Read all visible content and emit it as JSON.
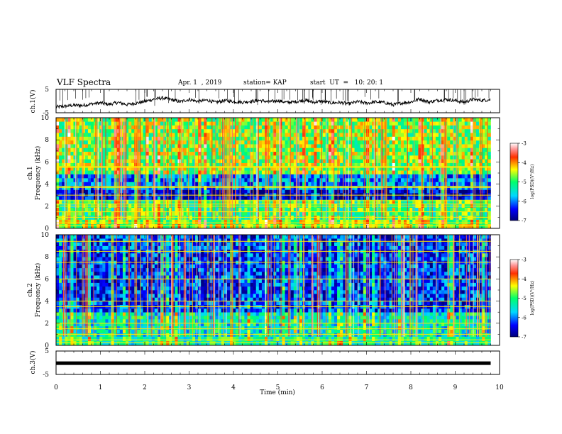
{
  "header": {
    "title": "VLF Spectra",
    "date": "Apr. 1  , 2019",
    "station": "station= KAP",
    "start": "start  UT  =   10: 20: 1"
  },
  "chart_data": [
    {
      "type": "line",
      "panel": "ch1-waveform",
      "ylabel": "ch.1(V)",
      "xlabel": "",
      "xlim": [
        0,
        10
      ],
      "ylim": [
        -5,
        5
      ],
      "yticks": [
        "5",
        "-5"
      ],
      "x_extent": [
        0,
        9.8
      ],
      "series": [
        {
          "color": "#000000",
          "x": [
            0,
            0.2,
            0.4,
            0.6,
            0.8,
            1.0,
            1.2,
            1.4,
            1.6,
            1.8,
            2.0,
            2.2,
            2.4,
            2.6,
            2.8,
            3.0,
            3.2,
            3.4,
            3.6,
            3.8,
            4.0,
            4.2,
            4.4,
            4.6,
            4.8,
            5.0,
            5.2,
            5.4,
            5.6,
            5.8,
            6.0,
            6.2,
            6.4,
            6.6,
            6.8,
            7.0,
            7.2,
            7.4,
            7.6,
            7.8,
            8.0,
            8.2,
            8.4,
            8.6,
            8.8,
            9.0,
            9.2,
            9.4,
            9.6,
            9.8
          ],
          "y": [
            -2.5,
            -2.2,
            -1.8,
            -1.9,
            -1.2,
            -0.8,
            -1.4,
            -0.6,
            -1.5,
            -0.9,
            -0.2,
            0.8,
            1.3,
            0.6,
            -0.3,
            0.7,
            -0.2,
            0.4,
            -0.6,
            0.2,
            -0.2,
            -0.5,
            -0.1,
            0.3,
            -0.4,
            0.2,
            -0.6,
            -0.3,
            0.4,
            -0.5,
            -0.1,
            -0.8,
            -0.6,
            -1.2,
            -0.3,
            -0.9,
            -0.4,
            -0.6,
            -1.6,
            -0.8,
            -0.4,
            0.9,
            -0.4,
            0.3,
            0.7,
            0.2,
            -0.5,
            0.7,
            0.3,
            0.6
          ]
        }
      ]
    },
    {
      "type": "heatmap",
      "panel": "ch1-spectrogram",
      "ylabel": "ch.1\nFrequency (kHz)",
      "xlim": [
        0,
        10
      ],
      "ylim": [
        0,
        10
      ],
      "yticks": [
        "0",
        "2",
        "4",
        "6",
        "8",
        "10"
      ],
      "x_extent": [
        0,
        9.8
      ],
      "colorbar": {
        "label": "log(PSD)(V²/Hz)",
        "range": [
          -7,
          -3
        ],
        "ticks": [
          "-3",
          "-4",
          "-5",
          "-6",
          "-7"
        ]
      },
      "dominant_log_psd_by_band": [
        {
          "freq_khz": [
            0,
            0.8
          ],
          "log_psd": -4.6
        },
        {
          "freq_khz": [
            0.8,
            2.6
          ],
          "log_psd": -5.0
        },
        {
          "freq_khz": [
            2.6,
            3.5
          ],
          "log_psd": -6.6
        },
        {
          "freq_khz": [
            3.5,
            4.9
          ],
          "log_psd": -6.0
        },
        {
          "freq_khz": [
            4.9,
            10
          ],
          "log_psd": -4.7
        }
      ],
      "harmonic_lines_khz": [
        0.25,
        0.5,
        1.0,
        1.5,
        2.0,
        2.2,
        2.5,
        3.0,
        3.7,
        3.8,
        5.5,
        5.6
      ]
    },
    {
      "type": "heatmap",
      "panel": "ch2-spectrogram",
      "ylabel": "ch.2\nFrequency (kHz)",
      "xlim": [
        0,
        10
      ],
      "ylim": [
        0,
        10
      ],
      "yticks": [
        "0",
        "2",
        "4",
        "6",
        "8",
        "10"
      ],
      "x_extent": [
        0,
        9.8
      ],
      "colorbar": {
        "label": "log(PSD)(V²/Hz)",
        "range": [
          -7,
          -3
        ],
        "ticks": [
          "-3",
          "-4",
          "-5",
          "-6",
          "-7"
        ]
      },
      "dominant_log_psd_by_band": [
        {
          "freq_khz": [
            0,
            0.8
          ],
          "log_psd": -5.2
        },
        {
          "freq_khz": [
            0.8,
            3.0
          ],
          "log_psd": -5.4
        },
        {
          "freq_khz": [
            3.0,
            10
          ],
          "log_psd": -6.3
        }
      ],
      "harmonic_lines_khz": [
        0.25,
        0.5,
        1.0,
        1.5,
        2.0,
        3.5,
        4.0,
        6.0,
        7.5,
        8.5,
        9.4
      ]
    },
    {
      "type": "line",
      "panel": "ch3-waveform",
      "ylabel": "ch.3(V)",
      "xlabel": "Time  (min)",
      "xlim": [
        0,
        10
      ],
      "ylim": [
        -5,
        5
      ],
      "yticks": [
        "5",
        "-5"
      ],
      "xticks": [
        "0",
        "1",
        "2",
        "3",
        "4",
        "5",
        "6",
        "7",
        "8",
        "9",
        "10"
      ],
      "series": [
        {
          "color": "#000000",
          "x": [
            0,
            9.8
          ],
          "y": [
            -0.2,
            -0.2
          ]
        }
      ]
    }
  ]
}
